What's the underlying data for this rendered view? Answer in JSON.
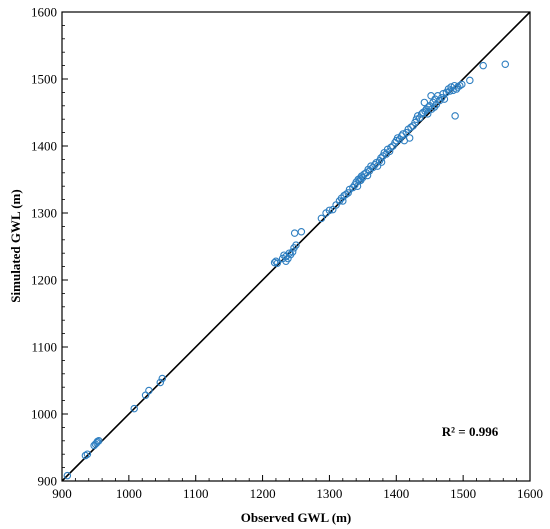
{
  "chart_data": {
    "type": "scatter",
    "title": "",
    "xlabel": "Observed GWL (m)",
    "ylabel": "Simulated GWL (m)",
    "xlim": [
      900,
      1600
    ],
    "ylim": [
      900,
      1600
    ],
    "xticks": [
      "900",
      "1000",
      "1100",
      "1200",
      "1300",
      "1400",
      "1500",
      "1600"
    ],
    "yticks": [
      "900",
      "1000",
      "1100",
      "1200",
      "1300",
      "1400",
      "1500",
      "1600"
    ],
    "annotation": "R² = 0.996",
    "grid": false,
    "legend": "none",
    "marker_color": "#2f7fc1",
    "line_color": "#000000",
    "reference_line": {
      "from": [
        900,
        900
      ],
      "to": [
        1600,
        1600
      ]
    },
    "points": [
      [
        908,
        908
      ],
      [
        935,
        938
      ],
      [
        938,
        940
      ],
      [
        948,
        953
      ],
      [
        952,
        957
      ],
      [
        953,
        959
      ],
      [
        955,
        960
      ],
      [
        950,
        955
      ],
      [
        1008,
        1008
      ],
      [
        1025,
        1028
      ],
      [
        1030,
        1035
      ],
      [
        1047,
        1047
      ],
      [
        1050,
        1053
      ],
      [
        1218,
        1226
      ],
      [
        1220,
        1228
      ],
      [
        1222,
        1225
      ],
      [
        1230,
        1232
      ],
      [
        1232,
        1237
      ],
      [
        1235,
        1235
      ],
      [
        1238,
        1232
      ],
      [
        1240,
        1240
      ],
      [
        1242,
        1238
      ],
      [
        1245,
        1242
      ],
      [
        1247,
        1248
      ],
      [
        1248,
        1270
      ],
      [
        1250,
        1252
      ],
      [
        1258,
        1272
      ],
      [
        1235,
        1228
      ],
      [
        1288,
        1292
      ],
      [
        1295,
        1300
      ],
      [
        1300,
        1304
      ],
      [
        1305,
        1305
      ],
      [
        1310,
        1312
      ],
      [
        1315,
        1318
      ],
      [
        1318,
        1322
      ],
      [
        1320,
        1318
      ],
      [
        1322,
        1326
      ],
      [
        1325,
        1328
      ],
      [
        1328,
        1330
      ],
      [
        1330,
        1335
      ],
      [
        1335,
        1338
      ],
      [
        1338,
        1342
      ],
      [
        1340,
        1346
      ],
      [
        1342,
        1340
      ],
      [
        1343,
        1350
      ],
      [
        1345,
        1348
      ],
      [
        1346,
        1352
      ],
      [
        1347,
        1349
      ],
      [
        1348,
        1355
      ],
      [
        1350,
        1353
      ],
      [
        1352,
        1358
      ],
      [
        1355,
        1360
      ],
      [
        1357,
        1356
      ],
      [
        1358,
        1365
      ],
      [
        1360,
        1363
      ],
      [
        1362,
        1370
      ],
      [
        1365,
        1368
      ],
      [
        1368,
        1372
      ],
      [
        1370,
        1375
      ],
      [
        1372,
        1370
      ],
      [
        1375,
        1378
      ],
      [
        1377,
        1382
      ],
      [
        1378,
        1376
      ],
      [
        1380,
        1385
      ],
      [
        1382,
        1390
      ],
      [
        1385,
        1388
      ],
      [
        1387,
        1395
      ],
      [
        1390,
        1392
      ],
      [
        1392,
        1398
      ],
      [
        1395,
        1400
      ],
      [
        1398,
        1405
      ],
      [
        1400,
        1408
      ],
      [
        1402,
        1412
      ],
      [
        1405,
        1410
      ],
      [
        1408,
        1415
      ],
      [
        1410,
        1418
      ],
      [
        1412,
        1408
      ],
      [
        1415,
        1420
      ],
      [
        1418,
        1425
      ],
      [
        1420,
        1412
      ],
      [
        1422,
        1428
      ],
      [
        1425,
        1430
      ],
      [
        1428,
        1435
      ],
      [
        1430,
        1440
      ],
      [
        1432,
        1445
      ],
      [
        1435,
        1442
      ],
      [
        1438,
        1448
      ],
      [
        1440,
        1450
      ],
      [
        1442,
        1465
      ],
      [
        1443,
        1452
      ],
      [
        1445,
        1455
      ],
      [
        1447,
        1448
      ],
      [
        1448,
        1458
      ],
      [
        1450,
        1460
      ],
      [
        1452,
        1475
      ],
      [
        1453,
        1455
      ],
      [
        1455,
        1465
      ],
      [
        1457,
        1458
      ],
      [
        1458,
        1470
      ],
      [
        1460,
        1462
      ],
      [
        1462,
        1475
      ],
      [
        1465,
        1468
      ],
      [
        1468,
        1472
      ],
      [
        1470,
        1478
      ],
      [
        1472,
        1470
      ],
      [
        1475,
        1480
      ],
      [
        1478,
        1485
      ],
      [
        1480,
        1482
      ],
      [
        1482,
        1488
      ],
      [
        1485,
        1483
      ],
      [
        1487,
        1490
      ],
      [
        1488,
        1445
      ],
      [
        1490,
        1485
      ],
      [
        1492,
        1488
      ],
      [
        1495,
        1490
      ],
      [
        1498,
        1492
      ],
      [
        1510,
        1498
      ],
      [
        1530,
        1520
      ],
      [
        1563,
        1522
      ]
    ]
  }
}
